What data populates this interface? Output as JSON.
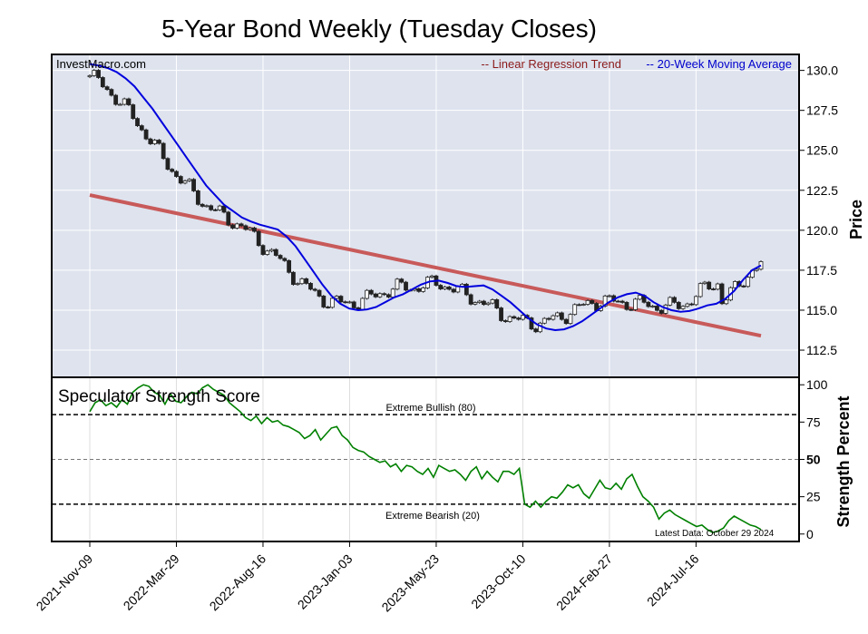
{
  "chart_data": [
    {
      "type": "candlestick",
      "title": "5-Year Bond Weekly (Tuesday Closes)",
      "watermark": "InvestMacro.com",
      "ylabel": "Price",
      "ylim": [
        110.8,
        131.0
      ],
      "yticks": [
        112.5,
        115.0,
        117.5,
        120.0,
        122.5,
        125.0,
        127.5,
        130.0
      ],
      "ytick_labels": [
        "112.5",
        "115.0",
        "117.5",
        "120.0",
        "122.5",
        "125.0",
        "127.5",
        "130.0"
      ],
      "x_start": "2021-11-09",
      "xticks": [
        "2021-11-09",
        "2022-03-29",
        "2022-08-16",
        "2023-01-03",
        "2023-05-23",
        "2023-10-10",
        "2024-02-27",
        "2024-07-16"
      ],
      "xtick_labels": [
        "2021-Nov-09",
        "2022-Mar-29",
        "2022-Aug-16",
        "2023-Jan-03",
        "2023-May-23",
        "2023-Oct-10",
        "2024-Feb-27",
        "2024-Jul-16"
      ],
      "legend": [
        {
          "label": "-- Linear Regression Trend",
          "color": "#8b1a1a"
        },
        {
          "label": "-- 20-Week Moving Average",
          "color": "#0000cc"
        }
      ],
      "legend_placement": "top-right",
      "grid": true,
      "colors": {
        "panel_bg": "#dee3ee",
        "up": "#ffffff",
        "down": "#222222",
        "trend": "#c85a5a",
        "ma": "#0000dd"
      },
      "regression": {
        "start": 122.2,
        "end": 113.4
      },
      "moving_average_20w": [
        130.4,
        130.3,
        130.15,
        129.9,
        129.5,
        129.0,
        128.3,
        127.6,
        126.8,
        126.0,
        125.2,
        124.4,
        123.6,
        122.8,
        122.2,
        121.6,
        121.2,
        120.8,
        120.55,
        120.35,
        120.2,
        120.05,
        119.6,
        119.0,
        118.2,
        117.4,
        116.6,
        115.9,
        115.4,
        115.1,
        115.0,
        115.05,
        115.2,
        115.5,
        115.8,
        116.0,
        116.3,
        116.6,
        116.8,
        116.85,
        116.7,
        116.5,
        116.45,
        116.5,
        116.55,
        116.3,
        115.9,
        115.5,
        115.0,
        114.5,
        114.1,
        113.85,
        113.75,
        113.8,
        114.0,
        114.3,
        114.7,
        115.1,
        115.5,
        115.8,
        116.0,
        116.1,
        115.9,
        115.5,
        115.2,
        115.0,
        114.9,
        114.95,
        115.1,
        115.3,
        115.4,
        115.7,
        116.2,
        116.9,
        117.5,
        117.8
      ]
    },
    {
      "type": "line",
      "title": "Speculator Strength Score",
      "ylabel": "Strength Percent",
      "ylim": [
        -5,
        105
      ],
      "yticks": [
        0,
        25,
        50,
        75,
        100
      ],
      "ytick_labels": [
        "0",
        "25",
        "50",
        "75",
        "100"
      ],
      "reference_lines": [
        {
          "value": 80,
          "label": "Extreme Bullish (80)"
        },
        {
          "value": 50,
          "label": ""
        },
        {
          "value": 20,
          "label": "Extreme Bearish (20)"
        }
      ],
      "note": "Latest Data: October 29 2024",
      "color": "#008000",
      "values": [
        82,
        88,
        90,
        86,
        88,
        85,
        90,
        87,
        95,
        98,
        100,
        99,
        95,
        93,
        87,
        94,
        89,
        88,
        92,
        95,
        94,
        98,
        100,
        97,
        95,
        93,
        88,
        85,
        82,
        78,
        76,
        79,
        74,
        78,
        75,
        76,
        73,
        72,
        70,
        68,
        64,
        66,
        70,
        63,
        67,
        71,
        72,
        66,
        63,
        58,
        56,
        55,
        52,
        50,
        48,
        49,
        45,
        47,
        42,
        46,
        45,
        42,
        40,
        44,
        38,
        46,
        44,
        42,
        43,
        40,
        36,
        42,
        45,
        37,
        42,
        38,
        35,
        42,
        42,
        40,
        44,
        20,
        18,
        22,
        18,
        22,
        25,
        24,
        28,
        33,
        31,
        33,
        27,
        24,
        30,
        36,
        31,
        30,
        34,
        30,
        37,
        40,
        32,
        25,
        22,
        18,
        10,
        14,
        16,
        13,
        11,
        9,
        7,
        5,
        6,
        3,
        1,
        2,
        4,
        9,
        12,
        10,
        8,
        6,
        5,
        3
      ]
    }
  ]
}
